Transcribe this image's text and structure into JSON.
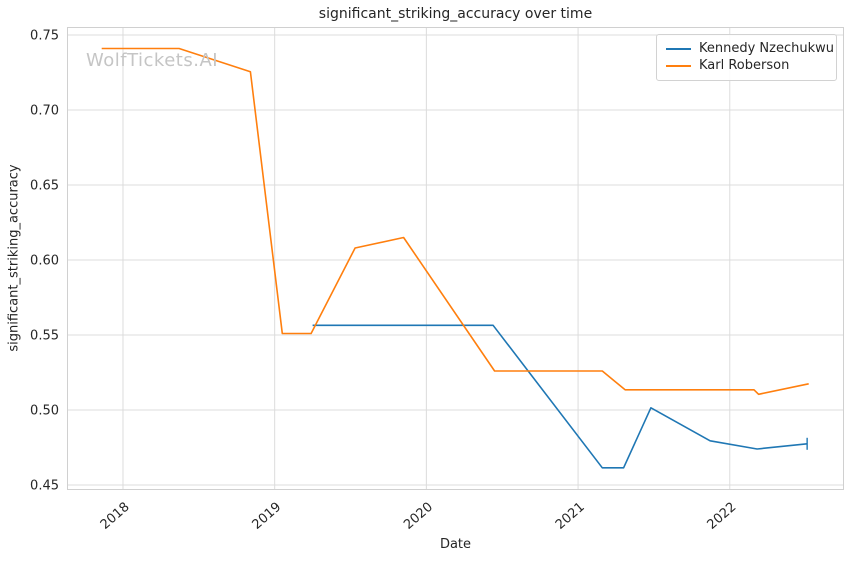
{
  "chart_data": {
    "type": "line",
    "title": "significant_striking_accuracy over time",
    "xlabel": "Date",
    "ylabel": "significant_striking_accuracy",
    "watermark": "WolfTickets.AI",
    "grid": true,
    "legend_position": "upper right",
    "xlim": [
      2017.631,
      2022.753
    ],
    "ylim": [
      0.4467,
      0.7553
    ],
    "x_ticks": [
      "2018",
      "2019",
      "2020",
      "2021",
      "2022"
    ],
    "x_tick_values": [
      2018,
      2019,
      2020,
      2021,
      2022
    ],
    "y_ticks": [
      "0.45",
      "0.50",
      "0.55",
      "0.60",
      "0.65",
      "0.70",
      "0.75"
    ],
    "y_tick_values": [
      0.45,
      0.5,
      0.55,
      0.6,
      0.65,
      0.7,
      0.75
    ],
    "colors": {
      "grid": "#dcdcdc",
      "spine": "#d0d0d0",
      "text": "#262626",
      "watermark": "#c5c5c5",
      "background": "#ffffff"
    },
    "series": [
      {
        "name": "Kennedy Nzechukwu",
        "color": "#1f77b4",
        "end_cap": true,
        "points": [
          [
            2019.25,
            0.5565
          ],
          [
            2020.44,
            0.5565
          ],
          [
            2021.16,
            0.4615
          ],
          [
            2021.3,
            0.4615
          ],
          [
            2021.48,
            0.5015
          ],
          [
            2021.87,
            0.4795
          ],
          [
            2022.18,
            0.474
          ],
          [
            2022.51,
            0.4775
          ]
        ]
      },
      {
        "name": "Karl Roberson",
        "color": "#ff7f0e",
        "end_cap": false,
        "points": [
          [
            2017.86,
            0.741
          ],
          [
            2018.37,
            0.741
          ],
          [
            2018.84,
            0.7255
          ],
          [
            2019.05,
            0.551
          ],
          [
            2019.24,
            0.551
          ],
          [
            2019.53,
            0.608
          ],
          [
            2019.85,
            0.615
          ],
          [
            2020.45,
            0.526
          ],
          [
            2021.16,
            0.526
          ],
          [
            2021.31,
            0.5135
          ],
          [
            2022.16,
            0.5135
          ],
          [
            2022.19,
            0.5105
          ],
          [
            2022.52,
            0.5175
          ]
        ]
      }
    ]
  }
}
